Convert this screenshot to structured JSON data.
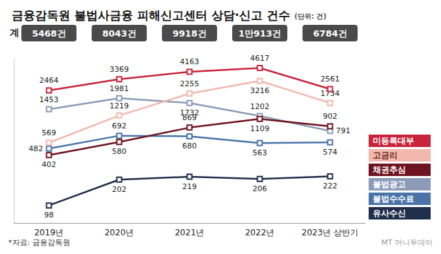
{
  "chart_data": {
    "type": "line",
    "title": "금융감독원 불법사금융 피해신고센터 상담·신고 건수",
    "unit": "(단위: 건)",
    "categories": [
      "2019년",
      "2020년",
      "2021년",
      "2022년",
      "2023년 상반기"
    ],
    "series": [
      {
        "name": "미등록대부",
        "color": "#c8243b",
        "values": [
          2464,
          3369,
          4163,
          4617,
          2561
        ]
      },
      {
        "name": "고금리",
        "color": "#f2b8ae",
        "values": [
          569,
          1219,
          2255,
          3216,
          1734
        ]
      },
      {
        "name": "채권추심",
        "color": "#6e1420",
        "values": [
          402,
          580,
          869,
          1109,
          902
        ]
      },
      {
        "name": "불법광고",
        "color": "#8c9bb8",
        "values": [
          1453,
          1981,
          1732,
          1202,
          791
        ]
      },
      {
        "name": "불법수수료",
        "color": "#4a74a8",
        "values": [
          482,
          692,
          680,
          563,
          574
        ]
      },
      {
        "name": "유사수신",
        "color": "#1f2e4a",
        "values": [
          98,
          202,
          219,
          206,
          222
        ]
      }
    ],
    "totals": {
      "label": "계",
      "values": [
        5468,
        8043,
        9918,
        10913,
        6784
      ],
      "value_labels": [
        "5468건",
        "8043건",
        "9918건",
        "1만913건",
        "6784건"
      ]
    },
    "ylim": [
      60,
      6000
    ],
    "yticks": [],
    "log": "y",
    "grid": false,
    "legend": "right",
    "data_labels": true,
    "tick_labels": "x",
    "marker": "square",
    "source": "*자료: 금융감독원",
    "credit": "MT 머니투데이"
  }
}
